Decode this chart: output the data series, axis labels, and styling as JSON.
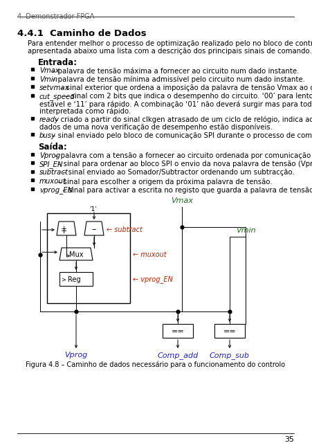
{
  "page_header": "4. Demonstrador FPGA",
  "section_title": "4.4.1  Caminho de Dados",
  "page_number": "35",
  "bg_color": "#ffffff",
  "figure_caption": "Figura 4.8 – Caminho de dados necessário para o funcionamento do controlo"
}
